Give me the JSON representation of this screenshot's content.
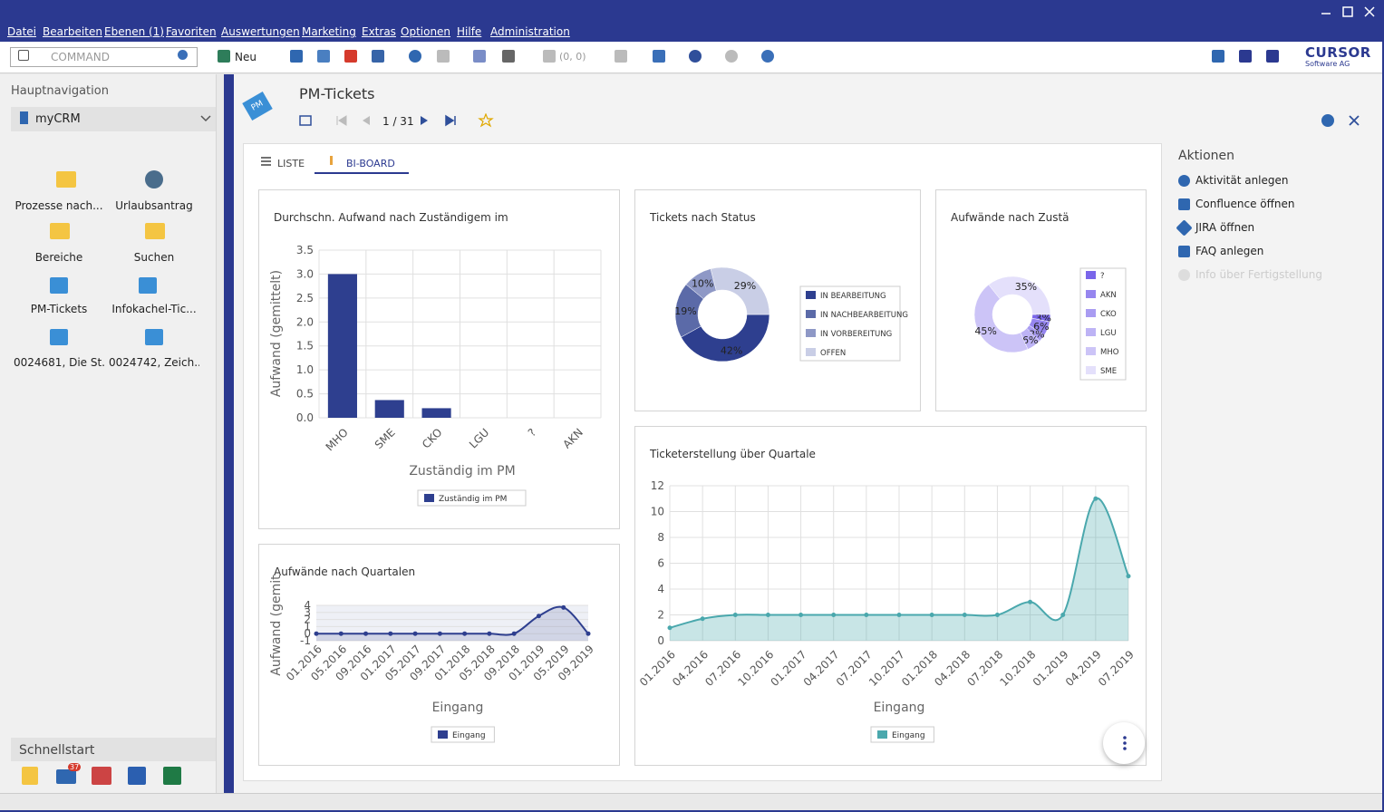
{
  "menu": [
    "Datei",
    "Bearbeiten",
    "Ebenen (1)",
    "Favoriten",
    "Auswertungen",
    "Marketing",
    "Extras",
    "Optionen",
    "Hilfe",
    "Administration"
  ],
  "toolbar": {
    "command": "COMMAND",
    "new": "Neu",
    "coords": "(0, 0)",
    "logo": "CURSOR",
    "logo_sub": "Software AG"
  },
  "navigation": {
    "title": "Hauptnavigation",
    "section": "myCRM",
    "items": [
      "Prozesse nach...",
      "Urlaubsantrag",
      "Bereiche",
      "Suchen",
      "PM-Tickets",
      "Infokachel-Tic...",
      "0024681, Die St...",
      "0024742, Zeich..."
    ],
    "quickstart": "Schnellstart",
    "badge": "37"
  },
  "record": {
    "icon": "PM",
    "title": "PM-Tickets",
    "position": "1 / 31"
  },
  "tabs": [
    "LISTE",
    "BI-BOARD"
  ],
  "actions": {
    "title": "Aktionen",
    "items": [
      "Aktivität anlegen",
      "Confluence öffnen",
      "JIRA öffnen",
      "FAQ anlegen",
      "Info über Fertigstellung"
    ]
  },
  "chart_data": [
    {
      "type": "bar",
      "title": "Durchschn. Aufwand nach Zuständigem im",
      "y_label": "Aufwand (gemittelt)",
      "x_label": "Zuständig im PM",
      "categories": [
        "MHO",
        "SME",
        "CKO",
        "LGU",
        "?",
        "AKN"
      ],
      "series": [
        {
          "name": "Zuständig im PM",
          "color": "#2e3f8f",
          "values": [
            3.0,
            0.37,
            0.2,
            0,
            0,
            0
          ]
        }
      ],
      "ylim": [
        0,
        3.5
      ],
      "yticks": [
        {
          "value": 0,
          "label": "0.0"
        },
        {
          "value": 0.5,
          "label": "0.5"
        },
        {
          "value": 1,
          "label": "1.0"
        },
        {
          "value": 1.5,
          "label": "1.5"
        },
        {
          "value": 2,
          "label": "2.0"
        },
        {
          "value": 2.5,
          "label": "2.5"
        },
        {
          "value": 3,
          "label": "3.0"
        },
        {
          "value": 3.5,
          "label": "3.5"
        }
      ],
      "grid": true
    },
    {
      "type": "donut",
      "title": "Tickets nach Status",
      "categories": [
        "IN BEARBEITUNG",
        "IN NACHBEARBEITUNG",
        "IN VORBEREITUNG",
        "OFFEN"
      ],
      "values": [
        42,
        19,
        10,
        29
      ],
      "value_labels": [
        "42%",
        "19%",
        "10%",
        "29%"
      ],
      "colors": [
        "#2e3f8f",
        "#5b6aa8",
        "#8e98c6",
        "#c9cee6"
      ]
    },
    {
      "type": "donut",
      "title": "Aufwände nach Zustä",
      "categories": [
        "?",
        "AKN",
        "CKO",
        "LGU",
        "MHO",
        "SME"
      ],
      "values": [
        3,
        6,
        3,
        6,
        45,
        35
      ],
      "value_labels": [
        "3%",
        "6%",
        "3%",
        "6%",
        "45%",
        "35%"
      ],
      "colors": [
        "#7a66ea",
        "#9686ef",
        "#a99cf2",
        "#bdb3f5",
        "#ccc4f7",
        "#e4e0fb"
      ]
    },
    {
      "type": "line",
      "title": "Aufwände nach Quartalen",
      "y_label": "Aufwand (gemit",
      "x_label": "Eingang",
      "categories": [
        "01.2016",
        "05.2016",
        "09.2016",
        "01.2017",
        "05.2017",
        "09.2017",
        "01.2018",
        "05.2018",
        "09.2018",
        "01.2019",
        "05.2019",
        "09.2019"
      ],
      "series": [
        {
          "name": "Eingang",
          "color": "#2e3f8f",
          "values": [
            0,
            0,
            0,
            0,
            0,
            0,
            0,
            0,
            0,
            2.5,
            3.7,
            0
          ]
        }
      ],
      "ylim": [
        -1,
        4
      ],
      "yticks": [
        -1,
        0,
        1,
        2,
        3,
        4
      ],
      "grid": true
    },
    {
      "type": "area",
      "title": "Ticketerstellung über Quartale",
      "x_label": "Eingang",
      "categories": [
        "01.2016",
        "04.2016",
        "07.2016",
        "10.2016",
        "01.2017",
        "04.2017",
        "07.2017",
        "10.2017",
        "01.2018",
        "04.2018",
        "07.2018",
        "10.2018",
        "01.2019",
        "04.2019",
        "07.2019"
      ],
      "series": [
        {
          "name": "Eingang",
          "color": "#4aa8ad",
          "values": [
            1,
            1.7,
            2,
            2,
            2,
            2,
            2,
            2,
            2,
            2,
            2,
            3,
            2,
            11,
            5
          ]
        }
      ],
      "ylim": [
        0,
        12
      ],
      "yticks": [
        0,
        2,
        4,
        6,
        8,
        10,
        12
      ],
      "grid": true
    }
  ]
}
